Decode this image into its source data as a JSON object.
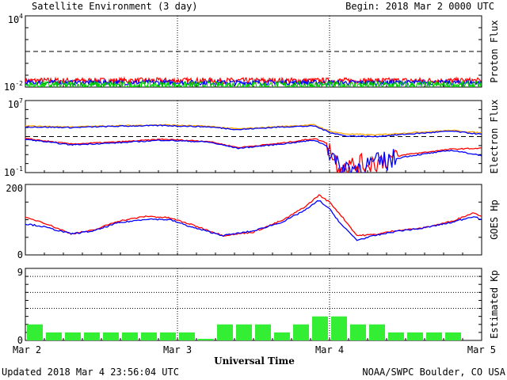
{
  "header": {
    "title": "Satellite Environment (3 day)",
    "begin": "Begin:  2018 Mar 2 0000 UTC"
  },
  "footer": {
    "updated": "Updated 2018 Mar  4 23:56:04 UTC",
    "credit": "NOAA/SWPC Boulder, CO USA"
  },
  "chart_data": [
    {
      "type": "line",
      "name": "proton",
      "ylabel": "Proton Flux",
      "yscale": "log",
      "ylim": [
        0.01,
        10000
      ],
      "yticks": [
        "10^4",
        "10^-2"
      ],
      "threshold": 10,
      "x_range_days": [
        0,
        3
      ],
      "series": [
        {
          "color": "#ff0000",
          "level": 0.035,
          "jitter": 0.12
        },
        {
          "color": "#0000ff",
          "level": 0.024,
          "jitter": 0.1
        },
        {
          "color": "#00cc00",
          "level": 0.015,
          "jitter": 0.15
        }
      ]
    },
    {
      "type": "line",
      "name": "electron",
      "ylabel": "Electron Flux",
      "yscale": "log",
      "ylim": [
        0.1,
        10000000
      ],
      "yticks": [
        "10^7",
        "10^-1"
      ],
      "threshold": 1000,
      "x_range_days": [
        0,
        3
      ],
      "series": [
        {
          "color": "#ffa500",
          "x": [
            0,
            0.3,
            0.6,
            0.9,
            1.2,
            1.4,
            1.7,
            1.9,
            2.0,
            2.1,
            2.3,
            2.5,
            2.8,
            3.0
          ],
          "y": [
            15000,
            12000,
            16000,
            20000,
            14000,
            7000,
            14000,
            20000,
            4000,
            2000,
            1500,
            2500,
            5000,
            2500
          ]
        },
        {
          "color": "#0000ff",
          "x": [
            0,
            0.3,
            0.6,
            0.9,
            1.2,
            1.4,
            1.7,
            1.9,
            2.0,
            2.1,
            2.3,
            2.5,
            2.8,
            3.0
          ],
          "y": [
            12000,
            10000,
            14000,
            17000,
            12000,
            6000,
            12000,
            15000,
            3000,
            1200,
            1000,
            1800,
            4000,
            1800
          ]
        },
        {
          "color": "#ff0000",
          "x": [
            0,
            0.3,
            0.6,
            0.9,
            1.2,
            1.4,
            1.7,
            1.9,
            1.98,
            2.05,
            2.15,
            2.3,
            2.5,
            2.8,
            3.0
          ],
          "y": [
            600,
            150,
            250,
            500,
            300,
            60,
            200,
            600,
            200,
            1,
            0.5,
            1.5,
            10,
            40,
            50
          ]
        },
        {
          "color": "#0000ff",
          "x": [
            0,
            0.3,
            0.6,
            0.9,
            1.2,
            1.4,
            1.7,
            1.9,
            1.98,
            2.05,
            2.15,
            2.3,
            2.5,
            2.8,
            3.0
          ],
          "y": [
            500,
            120,
            200,
            400,
            250,
            50,
            160,
            400,
            100,
            0.5,
            0.3,
            1,
            6,
            30,
            8
          ]
        }
      ]
    },
    {
      "type": "line",
      "name": "goes_hp",
      "ylabel": "GOES Hp",
      "ylim": [
        0,
        200
      ],
      "yticks": [
        "200",
        "0"
      ],
      "x_range_days": [
        0,
        3
      ],
      "series": [
        {
          "color": "#ff0000",
          "x": [
            0,
            0.1,
            0.3,
            0.45,
            0.6,
            0.8,
            0.95,
            1.1,
            1.3,
            1.5,
            1.7,
            1.85,
            1.93,
            2.0,
            2.08,
            2.18,
            2.3,
            2.45,
            2.6,
            2.8,
            2.95,
            3.0
          ],
          "y": [
            105,
            95,
            60,
            70,
            95,
            110,
            105,
            85,
            55,
            65,
            100,
            140,
            170,
            150,
            110,
            55,
            58,
            70,
            75,
            95,
            120,
            110
          ]
        },
        {
          "color": "#0000ff",
          "x": [
            0,
            0.1,
            0.3,
            0.45,
            0.6,
            0.8,
            0.95,
            1.1,
            1.3,
            1.5,
            1.7,
            1.85,
            1.93,
            2.0,
            2.08,
            2.18,
            2.3,
            2.45,
            2.6,
            2.8,
            2.95,
            3.0
          ],
          "y": [
            88,
            82,
            60,
            68,
            90,
            102,
            100,
            78,
            55,
            68,
            95,
            130,
            155,
            130,
            85,
            42,
            55,
            68,
            75,
            92,
            110,
            100
          ]
        }
      ]
    },
    {
      "type": "bar",
      "name": "kp",
      "ylabel": "Estimated Kp",
      "ylim": [
        0,
        9
      ],
      "yticks": [
        "9",
        "0"
      ],
      "color": "#33ee33",
      "values": [
        2,
        1,
        1,
        1,
        1,
        1,
        1,
        1,
        1,
        0.2,
        2,
        2,
        2,
        1,
        2,
        3,
        3,
        2,
        2,
        1,
        1,
        1,
        1,
        0
      ]
    }
  ],
  "xaxis": {
    "labels": [
      "Mar 2",
      "Mar 3",
      "Mar 4",
      "Mar 5"
    ],
    "title": "Universal Time"
  }
}
